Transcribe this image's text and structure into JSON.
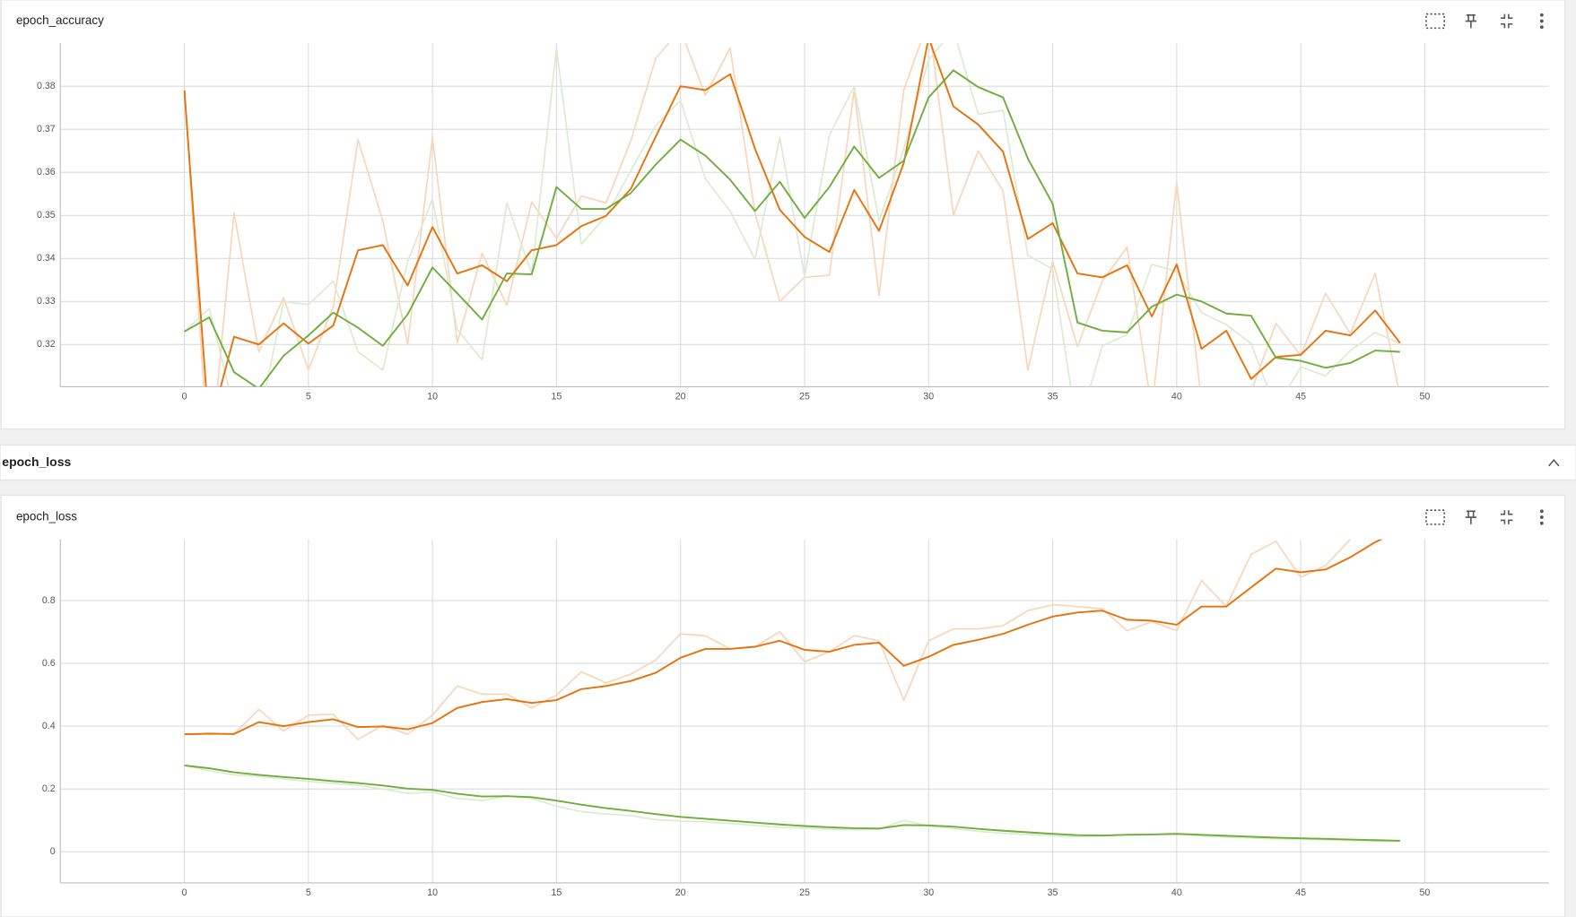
{
  "section_header": "epoch_loss",
  "chart_data": [
    {
      "type": "line",
      "title": "epoch_accuracy",
      "x": [
        0,
        1,
        2,
        3,
        4,
        5,
        6,
        7,
        8,
        9,
        10,
        11,
        12,
        13,
        14,
        15,
        16,
        17,
        18,
        19,
        20,
        21,
        22,
        23,
        24,
        25,
        26,
        27,
        28,
        29,
        30,
        31,
        32,
        33,
        34,
        35,
        36,
        37,
        38,
        39,
        40,
        41,
        42,
        43,
        44,
        45,
        46,
        47,
        48,
        49
      ],
      "xlim": [
        -5,
        55
      ],
      "xticks": [
        0,
        5,
        10,
        15,
        20,
        25,
        30,
        35,
        40,
        45,
        50
      ],
      "ylim": [
        0.3102,
        0.39
      ],
      "yticks": [
        0.32,
        0.33,
        0.34,
        0.35,
        0.36,
        0.37,
        0.38
      ],
      "grid": true,
      "series": [
        {
          "color": "#f9d5b8",
          "values": [
            0.38,
            0.29,
            0.3506,
            0.3183,
            0.3309,
            0.3141,
            0.3288,
            0.3676,
            0.3487,
            0.32,
            0.3681,
            0.3204,
            0.3412,
            0.3291,
            0.3531,
            0.3447,
            0.3545,
            0.3529,
            0.3674,
            0.3865,
            0.3931,
            0.3779,
            0.3889,
            0.3506,
            0.33,
            0.3356,
            0.3361,
            0.3791,
            0.3314,
            0.3791,
            0.3954,
            0.3501,
            0.365,
            0.3557,
            0.3141,
            0.3393,
            0.3195,
            0.3347,
            0.3426,
            0.305,
            0.3576,
            0.3066,
            0.309,
            0.309,
            0.3249,
            0.3174,
            0.3319,
            0.3225,
            0.3365,
            0.308
          ]
        },
        {
          "color": "#dcebd0",
          "values": [
            0.323,
            0.3284,
            0.305,
            0.302,
            0.33,
            0.3293,
            0.3347,
            0.3183,
            0.3141,
            0.3393,
            0.3538,
            0.3235,
            0.3164,
            0.3529,
            0.3365,
            0.3889,
            0.3433,
            0.3499,
            0.3604,
            0.3709,
            0.3767,
            0.3585,
            0.351,
            0.3398,
            0.3681,
            0.3358,
            0.3686,
            0.38,
            0.3487,
            0.3655,
            0.3861,
            0.3931,
            0.3735,
            0.3744,
            0.3407,
            0.3375,
            0.3,
            0.3197,
            0.3223,
            0.3386,
            0.337,
            0.3274,
            0.3246,
            0.3202,
            0.305,
            0.3148,
            0.3127,
            0.3186,
            0.3228,
            0.3202
          ]
        },
        {
          "color": "#e8710a",
          "values": [
            0.379,
            0.3,
            0.3218,
            0.32,
            0.3249,
            0.3202,
            0.3244,
            0.3419,
            0.3431,
            0.3337,
            0.3473,
            0.3365,
            0.3384,
            0.3347,
            0.3419,
            0.3431,
            0.3475,
            0.3499,
            0.3562,
            0.3683,
            0.38,
            0.3791,
            0.3828,
            0.3655,
            0.3513,
            0.345,
            0.3415,
            0.3559,
            0.3464,
            0.3622,
            0.3912,
            0.3753,
            0.3711,
            0.3648,
            0.3445,
            0.3482,
            0.3365,
            0.3356,
            0.3384,
            0.3265,
            0.3386,
            0.319,
            0.3232,
            0.312,
            0.3171,
            0.3176,
            0.3232,
            0.3221,
            0.3279,
            0.3204
          ]
        },
        {
          "color": "#6fad3c",
          "values": [
            0.323,
            0.3263,
            0.3136,
            0.3097,
            0.3174,
            0.3221,
            0.3274,
            0.3239,
            0.3197,
            0.327,
            0.3379,
            0.3319,
            0.3258,
            0.3365,
            0.3363,
            0.3566,
            0.3515,
            0.3515,
            0.3552,
            0.3618,
            0.3676,
            0.3639,
            0.3583,
            0.351,
            0.3578,
            0.3494,
            0.3566,
            0.366,
            0.3587,
            0.3627,
            0.3774,
            0.3837,
            0.3798,
            0.3774,
            0.3632,
            0.3527,
            0.3251,
            0.3232,
            0.3228,
            0.3288,
            0.3316,
            0.33,
            0.3272,
            0.3267,
            0.3169,
            0.3162,
            0.3146,
            0.3157,
            0.3186,
            0.3183
          ]
        }
      ]
    },
    {
      "type": "line",
      "title": "epoch_loss",
      "x": [
        0,
        1,
        2,
        3,
        4,
        5,
        6,
        7,
        8,
        9,
        10,
        11,
        12,
        13,
        14,
        15,
        16,
        17,
        18,
        19,
        20,
        21,
        22,
        23,
        24,
        25,
        26,
        27,
        28,
        29,
        30,
        31,
        32,
        33,
        34,
        35,
        36,
        37,
        38,
        39,
        40,
        41,
        42,
        43,
        44,
        45,
        46,
        47,
        48,
        49
      ],
      "xlim": [
        -5,
        55
      ],
      "xticks": [
        0,
        5,
        10,
        15,
        20,
        25,
        30,
        35,
        40,
        45,
        50
      ],
      "ylim": [
        -0.099,
        0.995
      ],
      "yticks": [
        0,
        0.2,
        0.4,
        0.6,
        0.8
      ],
      "grid": true,
      "series": [
        {
          "color": "#f9d5b8",
          "values": [
            0.374,
            0.378,
            0.375,
            0.454,
            0.384,
            0.435,
            0.438,
            0.358,
            0.403,
            0.374,
            0.435,
            0.528,
            0.502,
            0.502,
            0.458,
            0.499,
            0.573,
            0.538,
            0.566,
            0.611,
            0.694,
            0.688,
            0.646,
            0.653,
            0.701,
            0.605,
            0.637,
            0.688,
            0.672,
            0.483,
            0.672,
            0.71,
            0.71,
            0.72,
            0.768,
            0.787,
            0.781,
            0.774,
            0.704,
            0.733,
            0.704,
            0.864,
            0.781,
            0.947,
            0.989,
            0.874,
            0.912,
            0.995,
            1.05,
            1.08
          ]
        },
        {
          "color": "#dcebd0",
          "values": [
            0.275,
            0.258,
            0.245,
            0.24,
            0.232,
            0.224,
            0.218,
            0.212,
            0.2,
            0.186,
            0.19,
            0.17,
            0.163,
            0.178,
            0.17,
            0.145,
            0.128,
            0.12,
            0.115,
            0.102,
            0.098,
            0.095,
            0.09,
            0.084,
            0.078,
            0.075,
            0.072,
            0.07,
            0.072,
            0.1,
            0.082,
            0.074,
            0.065,
            0.059,
            0.055,
            0.05,
            0.048,
            0.05,
            0.055,
            0.055,
            0.058,
            0.05,
            0.047,
            0.044,
            0.041,
            0.04,
            0.038,
            0.036,
            0.034,
            0.033
          ]
        },
        {
          "color": "#e8710a",
          "values": [
            0.374,
            0.376,
            0.375,
            0.413,
            0.4,
            0.413,
            0.422,
            0.397,
            0.399,
            0.39,
            0.41,
            0.458,
            0.477,
            0.486,
            0.474,
            0.483,
            0.518,
            0.528,
            0.544,
            0.57,
            0.618,
            0.646,
            0.646,
            0.653,
            0.672,
            0.643,
            0.637,
            0.659,
            0.666,
            0.592,
            0.621,
            0.659,
            0.675,
            0.694,
            0.723,
            0.749,
            0.762,
            0.768,
            0.739,
            0.736,
            0.723,
            0.781,
            0.781,
            0.842,
            0.902,
            0.89,
            0.899,
            0.938,
            0.986,
            1.024
          ]
        },
        {
          "color": "#6fad3c",
          "values": [
            0.275,
            0.266,
            0.253,
            0.245,
            0.238,
            0.232,
            0.225,
            0.219,
            0.211,
            0.201,
            0.197,
            0.185,
            0.176,
            0.177,
            0.174,
            0.163,
            0.15,
            0.139,
            0.13,
            0.12,
            0.111,
            0.105,
            0.099,
            0.093,
            0.087,
            0.082,
            0.078,
            0.075,
            0.074,
            0.085,
            0.084,
            0.08,
            0.073,
            0.067,
            0.062,
            0.057,
            0.053,
            0.052,
            0.054,
            0.055,
            0.057,
            0.054,
            0.051,
            0.048,
            0.045,
            0.043,
            0.041,
            0.039,
            0.037,
            0.035
          ]
        }
      ]
    }
  ]
}
